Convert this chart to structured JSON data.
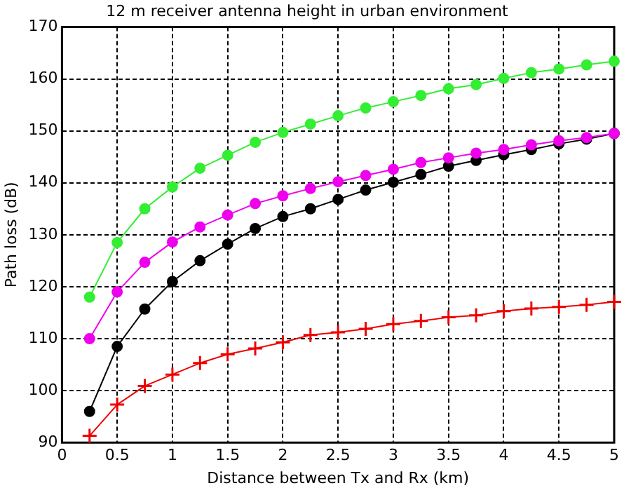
{
  "chart_data": {
    "type": "line",
    "title": "12 m receiver antenna height in urban environment",
    "xlabel": "Distance between Tx and Rx (km)",
    "ylabel": "Path loss (dB)",
    "x": [
      0.25,
      0.5,
      0.75,
      1,
      1.25,
      1.5,
      1.75,
      2,
      2.25,
      2.5,
      2.75,
      3,
      3.25,
      3.5,
      3.75,
      4,
      4.25,
      4.5,
      4.75,
      5
    ],
    "series": [
      {
        "color": "#33ee33",
        "marker": "circle",
        "values": [
          118,
          128.5,
          135,
          139.2,
          142.8,
          145.3,
          147.8,
          149.7,
          151.3,
          152.9,
          154.4,
          155.6,
          156.8,
          158.1,
          158.9,
          160.1,
          161.2,
          161.9,
          162.7,
          163.4
        ]
      },
      {
        "color": "#ee00ee",
        "marker": "circle",
        "values": [
          110,
          119,
          124.7,
          128.6,
          131.5,
          133.8,
          136,
          137.5,
          138.9,
          140.2,
          141.4,
          142.6,
          143.9,
          144.8,
          145.7,
          146.4,
          147.3,
          148.1,
          148.7,
          149.5
        ]
      },
      {
        "color": "#000000",
        "marker": "circle",
        "values": [
          96,
          108.5,
          115.7,
          121,
          125,
          128.2,
          131.2,
          133.5,
          135,
          136.8,
          138.6,
          140.1,
          141.6,
          143.2,
          144.3,
          145.4,
          146.4,
          147.5,
          148.4,
          149.5
        ]
      },
      {
        "color": "#ee0000",
        "marker": "cross",
        "values": [
          91.3,
          97.3,
          100.9,
          103.1,
          105.3,
          107,
          108.1,
          109.3,
          110.7,
          111.2,
          111.9,
          112.8,
          113.4,
          114.1,
          114.5,
          115.3,
          115.8,
          116.1,
          116.5,
          117.1
        ]
      }
    ],
    "xlim": [
      0,
      5
    ],
    "xticks": [
      0,
      0.5,
      1,
      1.5,
      2,
      2.5,
      3,
      3.5,
      4,
      4.5,
      5
    ],
    "ylim": [
      90,
      170
    ],
    "yticks": [
      90,
      100,
      110,
      120,
      130,
      140,
      150,
      160,
      170
    ],
    "grid": true,
    "line_style": "solid"
  }
}
